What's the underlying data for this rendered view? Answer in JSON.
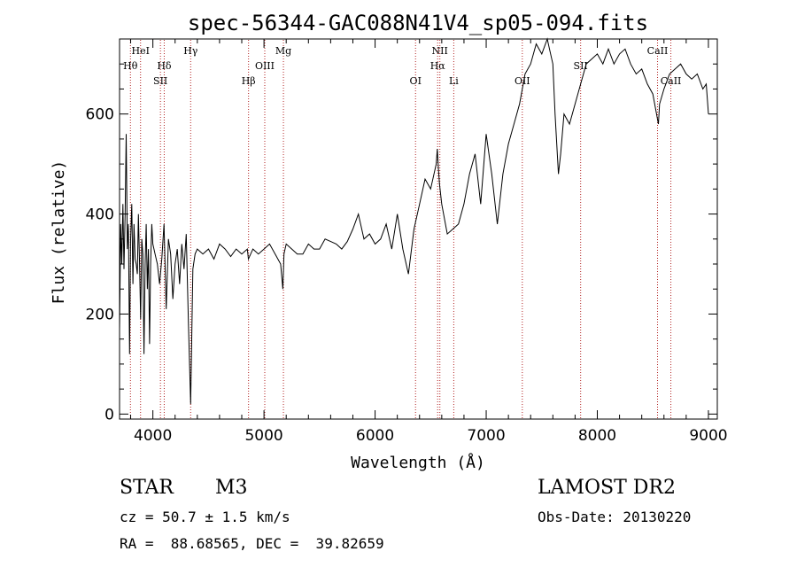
{
  "chart_data": {
    "type": "line",
    "title": "spec-56344-GAC088N41V4_sp05-094.fits",
    "xlabel": "Wavelength (Å)",
    "ylabel": "Flux (relative)",
    "xlim": [
      3700,
      9080
    ],
    "ylim": [
      -10,
      750
    ],
    "xticks": [
      4000,
      5000,
      6000,
      7000,
      8000,
      9000
    ],
    "yticks": [
      0,
      200,
      400,
      600
    ],
    "xminor_step": 200,
    "yminor_step": 50,
    "grid": false,
    "series": [
      {
        "x": [
          3700,
          3710,
          3720,
          3730,
          3740,
          3750,
          3760,
          3770,
          3780,
          3790,
          3800,
          3810,
          3820,
          3830,
          3840,
          3850,
          3860,
          3870,
          3880,
          3890,
          3900,
          3910,
          3920,
          3930,
          3940,
          3950,
          3960,
          3970,
          3980,
          3990,
          4000,
          4020,
          4040,
          4060,
          4080,
          4100,
          4120,
          4140,
          4160,
          4180,
          4200,
          4220,
          4240,
          4260,
          4280,
          4300,
          4320,
          4340,
          4360,
          4380,
          4400,
          4450,
          4500,
          4550,
          4600,
          4650,
          4700,
          4750,
          4800,
          4850,
          4860,
          4900,
          4950,
          5000,
          5050,
          5100,
          5150,
          5170,
          5180,
          5190,
          5200,
          5250,
          5300,
          5350,
          5400,
          5450,
          5500,
          5550,
          5600,
          5650,
          5700,
          5750,
          5800,
          5850,
          5900,
          5950,
          6000,
          6050,
          6100,
          6150,
          6200,
          6250,
          6300,
          6350,
          6400,
          6450,
          6500,
          6550,
          6560,
          6570,
          6580,
          6600,
          6650,
          6700,
          6750,
          6800,
          6850,
          6900,
          6950,
          7000,
          7050,
          7100,
          7150,
          7200,
          7250,
          7300,
          7350,
          7400,
          7450,
          7500,
          7550,
          7570,
          7600,
          7620,
          7650,
          7670,
          7700,
          7750,
          7800,
          7850,
          7900,
          7950,
          8000,
          8050,
          8100,
          8150,
          8200,
          8250,
          8300,
          8350,
          8400,
          8450,
          8500,
          8550,
          8560,
          8600,
          8650,
          8700,
          8750,
          8800,
          8850,
          8900,
          8950,
          8980,
          9000
        ],
        "y": [
          170,
          380,
          300,
          420,
          290,
          400,
          560,
          330,
          380,
          120,
          350,
          420,
          260,
          380,
          310,
          300,
          280,
          400,
          300,
          190,
          350,
          320,
          120,
          300,
          380,
          250,
          330,
          140,
          300,
          380,
          340,
          320,
          300,
          260,
          310,
          380,
          210,
          350,
          320,
          230,
          300,
          330,
          260,
          340,
          290,
          360,
          180,
          20,
          290,
          320,
          330,
          320,
          330,
          310,
          340,
          330,
          315,
          330,
          320,
          330,
          310,
          330,
          320,
          330,
          340,
          320,
          300,
          250,
          320,
          330,
          340,
          330,
          320,
          320,
          340,
          330,
          330,
          350,
          345,
          340,
          330,
          345,
          370,
          400,
          350,
          360,
          340,
          350,
          380,
          330,
          400,
          330,
          280,
          370,
          420,
          470,
          450,
          500,
          530,
          490,
          460,
          420,
          360,
          370,
          380,
          420,
          480,
          520,
          420,
          560,
          480,
          380,
          480,
          540,
          580,
          620,
          680,
          700,
          740,
          720,
          750,
          730,
          700,
          600,
          480,
          520,
          600,
          580,
          620,
          660,
          700,
          710,
          720,
          700,
          730,
          700,
          720,
          730,
          700,
          680,
          690,
          660,
          640,
          580,
          620,
          650,
          680,
          690,
          700,
          680,
          670,
          680,
          650,
          660,
          600
        ]
      }
    ],
    "lines": [
      {
        "label": "Hθ",
        "x": 3798,
        "row": 2
      },
      {
        "label": "HeI",
        "x": 3889,
        "row": 1
      },
      {
        "label": "Hδ",
        "x": 4102,
        "row": 2
      },
      {
        "label": "SII",
        "x": 4068,
        "row": 3
      },
      {
        "label": "Hγ",
        "x": 4340,
        "row": 1
      },
      {
        "label": "Hβ",
        "x": 4861,
        "row": 3
      },
      {
        "label": "OIII",
        "x": 5007,
        "row": 2
      },
      {
        "label": "Mg",
        "x": 5175,
        "row": 1
      },
      {
        "label": "OI",
        "x": 6364,
        "row": 3
      },
      {
        "label": "NII",
        "x": 6583,
        "row": 1
      },
      {
        "label": "Hα",
        "x": 6563,
        "row": 2
      },
      {
        "label": "Li",
        "x": 6708,
        "row": 3
      },
      {
        "label": "OII",
        "x": 7325,
        "row": 3
      },
      {
        "label": "SII",
        "x": 7850,
        "row": 2
      },
      {
        "label": "CaII",
        "x": 8542,
        "row": 1
      },
      {
        "label": "CaII",
        "x": 8662,
        "row": 3
      }
    ]
  },
  "info": {
    "object_class": "STAR",
    "subclass": "M3",
    "survey": "LAMOST DR2",
    "redshift_text": "cz = 50.7 ± 1.5 km/s",
    "obs_date": "Obs-Date: 20130220",
    "coords": "RA =  88.68565, DEC =  39.82659"
  }
}
